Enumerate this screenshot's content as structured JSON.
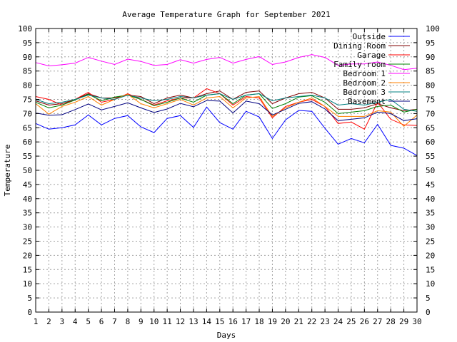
{
  "chart_data": {
    "type": "line",
    "title": "Average Temperature Graph for September 2021",
    "xlabel": "Days",
    "ylabel": "Temperature",
    "xlim": [
      1,
      30
    ],
    "ylim": [
      0,
      100
    ],
    "x_ticks": [
      1,
      2,
      3,
      4,
      5,
      6,
      7,
      8,
      9,
      10,
      11,
      12,
      13,
      14,
      15,
      16,
      17,
      18,
      19,
      20,
      21,
      22,
      23,
      24,
      25,
      26,
      27,
      28,
      29,
      30
    ],
    "y_ticks": [
      0,
      5,
      10,
      15,
      20,
      25,
      30,
      35,
      40,
      45,
      50,
      55,
      60,
      65,
      70,
      75,
      80,
      85,
      90,
      95,
      100
    ],
    "y_ticks_right": true,
    "grid": true,
    "legend_position": "top-right",
    "x": [
      1,
      2,
      3,
      4,
      5,
      6,
      7,
      8,
      9,
      10,
      11,
      12,
      13,
      14,
      15,
      16,
      17,
      18,
      19,
      20,
      21,
      22,
      23,
      24,
      25,
      26,
      27,
      28,
      29,
      30
    ],
    "series": [
      {
        "name": "Outside",
        "color": "#0000ff",
        "values": [
          66.5,
          64.5,
          65,
          66,
          69.5,
          66,
          68.3,
          69.3,
          65.3,
          63.3,
          68.3,
          69.3,
          65.1,
          72.3,
          66.8,
          64.5,
          70.8,
          68.8,
          61.2,
          67.8,
          71.1,
          70.8,
          64.8,
          59.2,
          61.2,
          59.7,
          66.2,
          58.8,
          57.8,
          55.2
        ]
      },
      {
        "name": "Dining Room",
        "color": "#800000",
        "values": [
          74.5,
          73,
          73.5,
          75,
          77,
          75.5,
          75.5,
          76.5,
          76,
          73.5,
          75.5,
          76.5,
          75.5,
          77,
          78,
          75,
          77.5,
          78,
          73.5,
          75.5,
          77,
          77.5,
          75.5,
          71.5,
          71.5,
          72,
          73.5,
          72,
          71,
          71.5
        ]
      },
      {
        "name": "Garage",
        "color": "#ff0000",
        "values": [
          76,
          75,
          73,
          75,
          77.5,
          74,
          75,
          77,
          75,
          73,
          74.5,
          75.5,
          75.5,
          78.8,
          77,
          73,
          76,
          75.5,
          68.5,
          72.5,
          74,
          75,
          72.5,
          66.5,
          67,
          64.5,
          74,
          68,
          66,
          65.8
        ]
      },
      {
        "name": "Family room",
        "color": "#008000",
        "values": [
          74,
          72,
          73,
          74.8,
          76.8,
          74.5,
          75.8,
          76.5,
          75,
          72.8,
          74,
          75.5,
          74,
          76.5,
          77,
          73.5,
          76.5,
          77,
          71.8,
          73.5,
          75.8,
          76.3,
          74,
          70,
          70.5,
          71,
          72.5,
          73,
          70.5,
          71.5
        ]
      },
      {
        "name": "Bedroom 1",
        "color": "#ff00ff",
        "values": [
          88,
          86.8,
          87.2,
          87.8,
          89.8,
          88.5,
          87.3,
          89.2,
          88.4,
          87,
          87.3,
          89,
          87.8,
          89.1,
          89.8,
          87.8,
          89.1,
          90.1,
          87.3,
          88.2,
          89.8,
          90.8,
          89.8,
          87,
          87.5,
          87.5,
          88.2,
          87,
          85.5,
          86
        ]
      },
      {
        "name": "Bedroom 2",
        "color": "#ff8000",
        "values": [
          73.5,
          69.8,
          72.5,
          74,
          76,
          73,
          75,
          76.8,
          73.5,
          72,
          73.5,
          75,
          73,
          75.5,
          76,
          72,
          75.5,
          76,
          69,
          72,
          74,
          75.5,
          72.5,
          69,
          69,
          69,
          71,
          70.5,
          65.5,
          69.5
        ]
      },
      {
        "name": "Bedroom 3",
        "color": "#008080",
        "values": [
          75,
          73.5,
          74,
          75,
          76.5,
          75.5,
          75,
          76.5,
          75.5,
          74.5,
          75,
          76,
          75.5,
          76.5,
          77,
          75,
          76.5,
          77,
          74.5,
          75.5,
          76,
          76.5,
          75.5,
          73,
          73.5,
          73,
          74,
          75,
          71.5,
          70.8
        ]
      },
      {
        "name": "Basement",
        "color": "#000080",
        "values": [
          70.2,
          69.4,
          69.6,
          71.4,
          73.4,
          71.3,
          72.5,
          73.8,
          72,
          70.4,
          71.6,
          73.6,
          72.4,
          74.6,
          74.4,
          70.2,
          74.4,
          73.5,
          69.5,
          71.5,
          73.6,
          74.2,
          71.6,
          67.5,
          68,
          68.5,
          70.5,
          70,
          67.5,
          68.2
        ]
      }
    ]
  }
}
